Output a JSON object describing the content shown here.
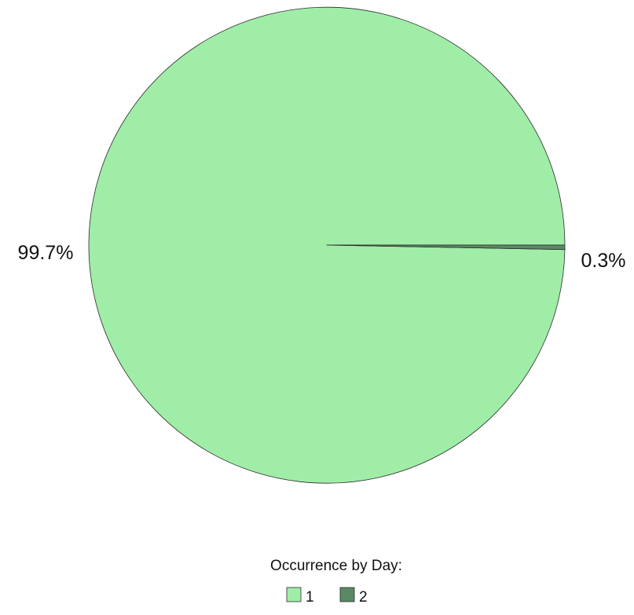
{
  "chart_data": {
    "type": "pie",
    "title": "",
    "slices": [
      {
        "label": "1",
        "value": 99.7,
        "display": "99.7%",
        "color": "#a0eda8"
      },
      {
        "label": "2",
        "value": 0.3,
        "display": "0.3%",
        "color": "#5a8a65"
      }
    ],
    "legend": {
      "title": "Occurrence by Day:",
      "placement": "bottom"
    },
    "start_angle": "3 o'clock",
    "direction": "clockwise",
    "outline_color": "#2b2b2b"
  }
}
